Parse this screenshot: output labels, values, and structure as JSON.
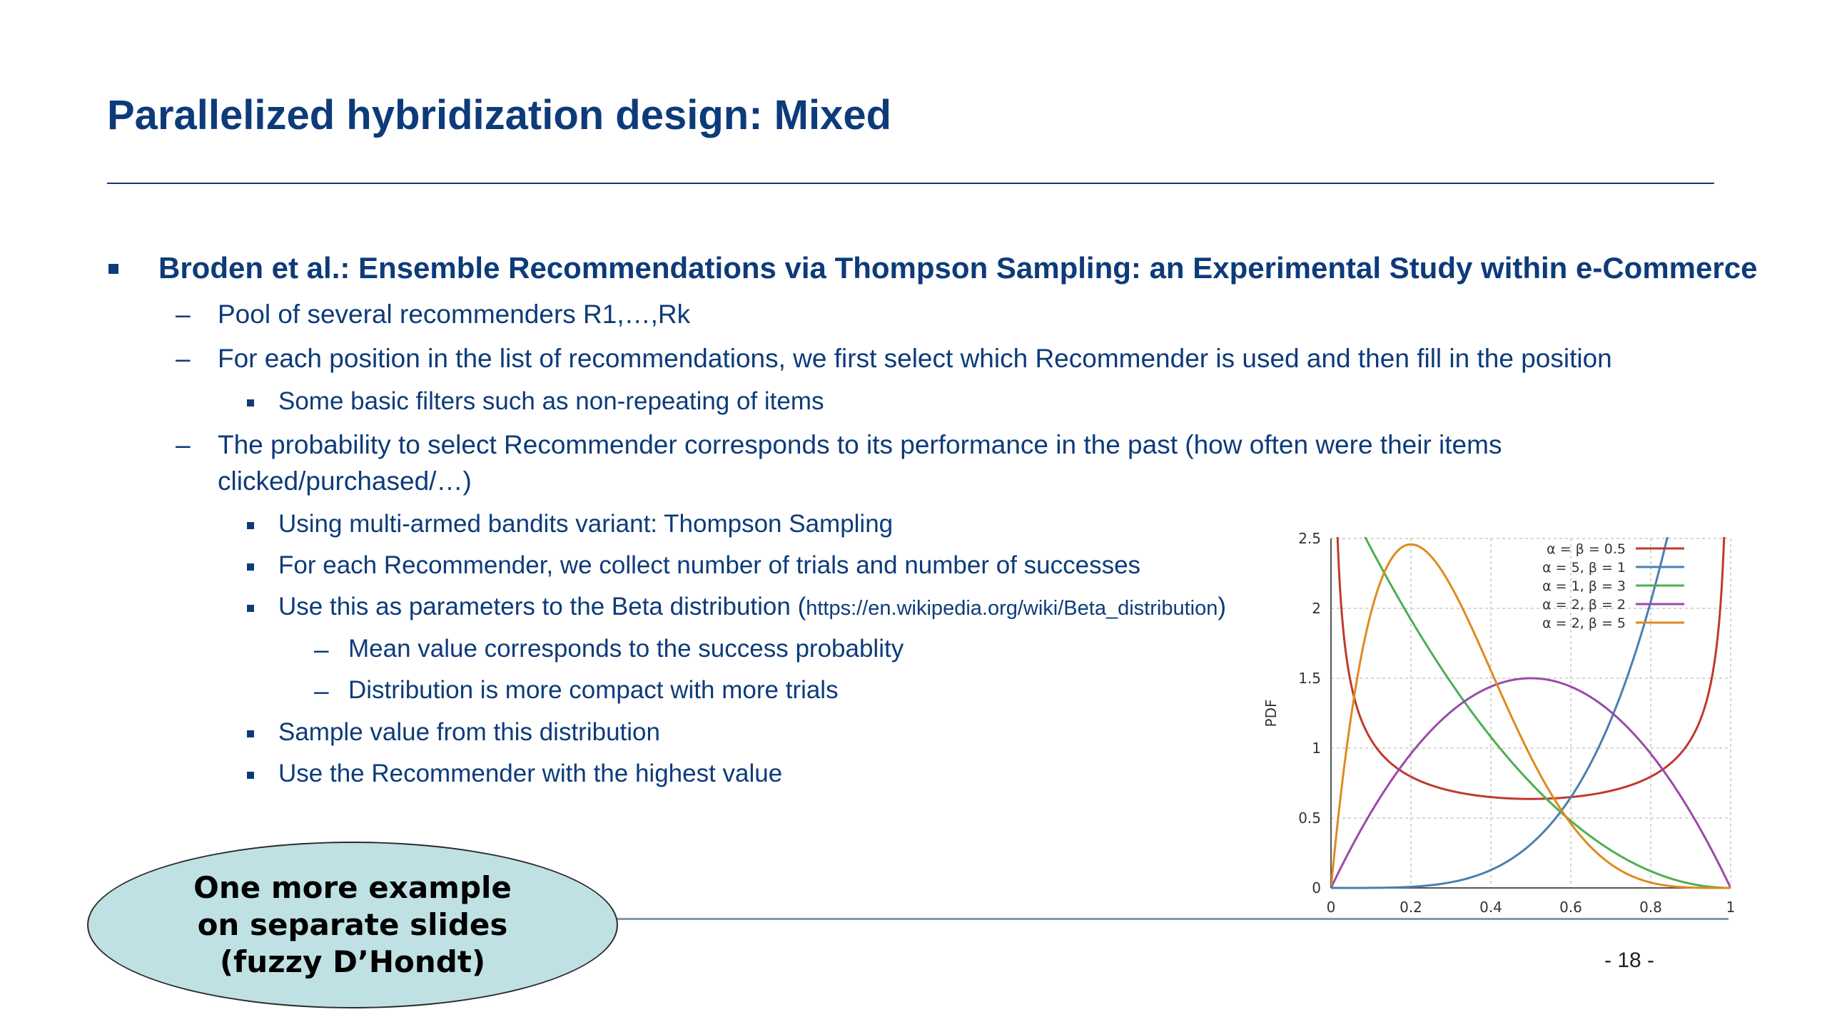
{
  "slide": {
    "title": "Parallelized hybridization design: Mixed",
    "page_number": "- 18 -"
  },
  "content": {
    "main_bullet": "Broden et al.: Ensemble Recommendations via Thompson Sampling: an Experimental Study within e-Commerce",
    "items": [
      {
        "dash": "–",
        "text": "Pool of several recommenders R1,…,Rk"
      },
      {
        "dash": "–",
        "text": "For each position in the list of recommendations, we first select which Recommender is used and then fill in the position"
      },
      {
        "text": "Some basic filters such as non-repeating of items"
      },
      {
        "dash": "–",
        "text": "The probability to select Recommender corresponds to its performance in the past (how often were their items"
      },
      {
        "text": "clicked/purchased/…)"
      },
      {
        "text": "Using multi-armed bandits variant: Thompson Sampling"
      },
      {
        "text": "For each Recommender, we collect number of trials and number of successes"
      },
      {
        "text": "Use this as parameters to the Beta distribution (",
        "url": "https://en.wikipedia.org/wiki/Beta_distribution",
        "suffix": ")"
      },
      {
        "dash": "–",
        "text": "Mean value corresponds to the success probablity"
      },
      {
        "dash": "–",
        "text": "Distribution is more compact with more trials"
      },
      {
        "text": "Sample value from this distribution"
      },
      {
        "text": "Use the Recommender with the highest value"
      }
    ]
  },
  "callout": {
    "lines": [
      "One more example",
      "on separate slides",
      "(fuzzy D’Hondt)"
    ]
  },
  "chart_data": {
    "type": "line",
    "title": "",
    "xlabel": "",
    "ylabel": "PDF",
    "xlim": [
      0,
      1
    ],
    "ylim": [
      0,
      2.5
    ],
    "x_ticks": [
      "0",
      "0.2",
      "0.4",
      "0.6",
      "0.8",
      "1"
    ],
    "y_ticks": [
      "0",
      "0.5",
      "1",
      "1.5",
      "2",
      "2.5"
    ],
    "grid": true,
    "legend_position": "top-right",
    "series": [
      {
        "name": "α = β = 0.5",
        "color": "#c0392b",
        "a": 0.5,
        "b": 0.5
      },
      {
        "name": "α = 5, β = 1",
        "color": "#4a7fb0",
        "a": 5,
        "b": 1
      },
      {
        "name": "α = 1, β = 3",
        "color": "#4caf50",
        "a": 1,
        "b": 3
      },
      {
        "name": "α = 2, β = 2",
        "color": "#9b4aa8",
        "a": 2,
        "b": 2
      },
      {
        "name": "α = 2, β = 5",
        "color": "#e08a1e",
        "a": 2,
        "b": 5
      }
    ]
  }
}
